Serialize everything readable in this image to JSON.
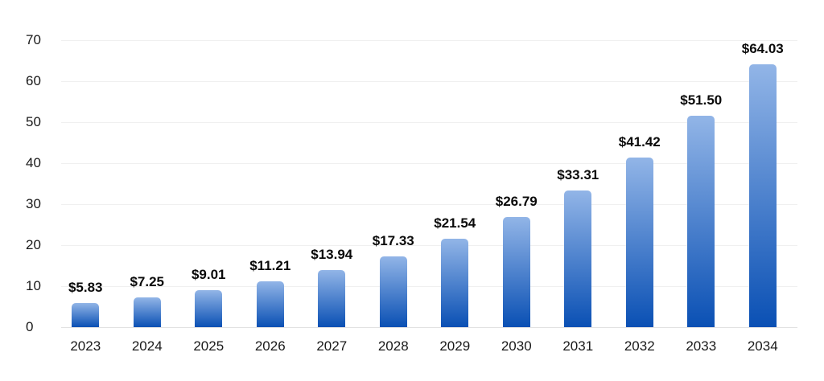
{
  "chart_data": {
    "type": "bar",
    "title": "",
    "xlabel": "",
    "ylabel": "",
    "categories": [
      "2023",
      "2024",
      "2025",
      "2026",
      "2027",
      "2028",
      "2029",
      "2030",
      "2031",
      "2032",
      "2033",
      "2034"
    ],
    "values": [
      5.83,
      7.25,
      9.01,
      11.21,
      13.94,
      17.33,
      21.54,
      26.79,
      33.31,
      41.42,
      51.5,
      64.03
    ],
    "value_labels": [
      "$5.83",
      "$7.25",
      "$9.01",
      "$11.21",
      "$13.94",
      "$17.33",
      "$21.54",
      "$26.79",
      "$33.31",
      "$41.42",
      "$51.50",
      "$64.03"
    ],
    "label_prefix": "$",
    "ylim": [
      0,
      70
    ],
    "yticks": [
      0,
      10,
      20,
      30,
      40,
      50,
      60,
      70
    ],
    "grid": true,
    "legend": "none",
    "bar_color_top": "#92b5e7",
    "bar_color_bottom": "#0a50b4",
    "gridline_color": "#f0f0f0",
    "baseline_color": "#e2e2e2",
    "text_color": "#191919"
  }
}
